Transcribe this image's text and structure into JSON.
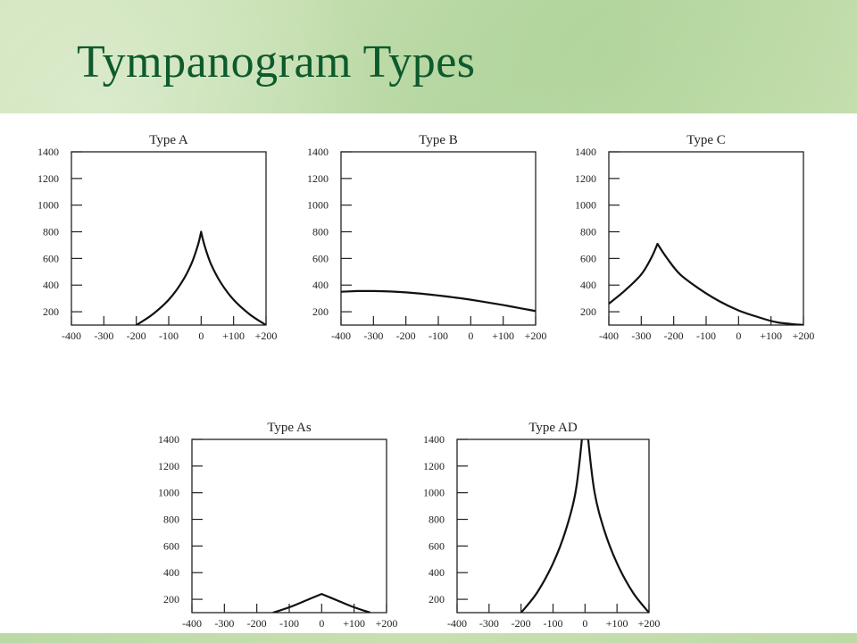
{
  "slide": {
    "title": "Tympanogram Types"
  },
  "colors": {
    "title": "#0d5a2c",
    "background": "#c3dcaa",
    "panel": "#ffffff",
    "line": "#111111"
  },
  "chart_data": [
    {
      "type": "line",
      "title": "Type A",
      "xlim": [
        -400,
        200
      ],
      "ylim": [
        100,
        1400
      ],
      "xticks": [
        -400,
        -300,
        -200,
        -100,
        0,
        100,
        200
      ],
      "xtick_labels": [
        "-400",
        "-300",
        "-200",
        "-100",
        "0",
        "+100",
        "+200"
      ],
      "yticks": [
        200,
        400,
        600,
        800,
        1000,
        1200,
        1400
      ],
      "ytick_labels": [
        "200",
        "400",
        "600",
        "800",
        "1000",
        "1200",
        "1400"
      ],
      "series": [
        {
          "x": [
            -200,
            -150,
            -100,
            -60,
            -30,
            -10,
            0,
            10,
            30,
            60,
            100,
            150,
            200
          ],
          "y": [
            100,
            180,
            290,
            420,
            560,
            700,
            800,
            700,
            560,
            420,
            290,
            180,
            100
          ]
        }
      ]
    },
    {
      "type": "line",
      "title": "Type B",
      "xlim": [
        -400,
        200
      ],
      "ylim": [
        100,
        1400
      ],
      "xticks": [
        -400,
        -300,
        -200,
        -100,
        0,
        100,
        200
      ],
      "xtick_labels": [
        "-400",
        "-300",
        "-200",
        "-100",
        "0",
        "+100",
        "+200"
      ],
      "yticks": [
        200,
        400,
        600,
        800,
        1000,
        1200,
        1400
      ],
      "ytick_labels": [
        "200",
        "400",
        "600",
        "800",
        "1000",
        "1200",
        "1400"
      ],
      "series": [
        {
          "x": [
            -400,
            -350,
            -300,
            -250,
            -200,
            -150,
            -100,
            -50,
            0,
            50,
            100,
            150,
            200
          ],
          "y": [
            350,
            355,
            355,
            352,
            345,
            335,
            322,
            307,
            290,
            270,
            250,
            228,
            205
          ]
        }
      ]
    },
    {
      "type": "line",
      "title": "Type C",
      "xlim": [
        -400,
        200
      ],
      "ylim": [
        100,
        1400
      ],
      "xticks": [
        -400,
        -300,
        -200,
        -100,
        0,
        100,
        200
      ],
      "xtick_labels": [
        "-400",
        "-300",
        "-200",
        "-100",
        "0",
        "+100",
        "+200"
      ],
      "yticks": [
        200,
        400,
        600,
        800,
        1000,
        1200,
        1400
      ],
      "ytick_labels": [
        "200",
        "400",
        "600",
        "800",
        "1000",
        "1200",
        "1400"
      ],
      "series": [
        {
          "x": [
            -400,
            -350,
            -300,
            -270,
            -250,
            -220,
            -180,
            -120,
            -60,
            0,
            60,
            120,
            200
          ],
          "y": [
            260,
            360,
            480,
            600,
            710,
            600,
            480,
            370,
            280,
            210,
            160,
            120,
            100
          ]
        }
      ]
    },
    {
      "type": "line",
      "title": "Type As",
      "xlim": [
        -400,
        200
      ],
      "ylim": [
        100,
        1400
      ],
      "xticks": [
        -400,
        -300,
        -200,
        -100,
        0,
        100,
        200
      ],
      "xtick_labels": [
        "-400",
        "-300",
        "-200",
        "-100",
        "0",
        "+100",
        "+200"
      ],
      "yticks": [
        200,
        400,
        600,
        800,
        1000,
        1200,
        1400
      ],
      "ytick_labels": [
        "200",
        "400",
        "600",
        "800",
        "1000",
        "1200",
        "1400"
      ],
      "series": [
        {
          "x": [
            -150,
            -100,
            -50,
            0,
            50,
            100,
            150
          ],
          "y": [
            100,
            140,
            190,
            240,
            190,
            140,
            100
          ]
        }
      ]
    },
    {
      "type": "line",
      "title": "Type AD",
      "xlim": [
        -400,
        200
      ],
      "ylim": [
        100,
        1400
      ],
      "xticks": [
        -400,
        -300,
        -200,
        -100,
        0,
        100,
        200
      ],
      "xtick_labels": [
        "-400",
        "-300",
        "-200",
        "-100",
        "0",
        "+100",
        "+200"
      ],
      "yticks": [
        200,
        400,
        600,
        800,
        1000,
        1200,
        1400
      ],
      "ytick_labels": [
        "200",
        "400",
        "600",
        "800",
        "1000",
        "1200",
        "1400"
      ],
      "series": [
        {
          "x": [
            -200,
            -150,
            -100,
            -60,
            -30,
            -10,
            10,
            30,
            60,
            100,
            150,
            200
          ],
          "y": [
            100,
            250,
            470,
            720,
            1000,
            1400,
            1400,
            1000,
            720,
            470,
            250,
            100
          ]
        }
      ]
    }
  ]
}
